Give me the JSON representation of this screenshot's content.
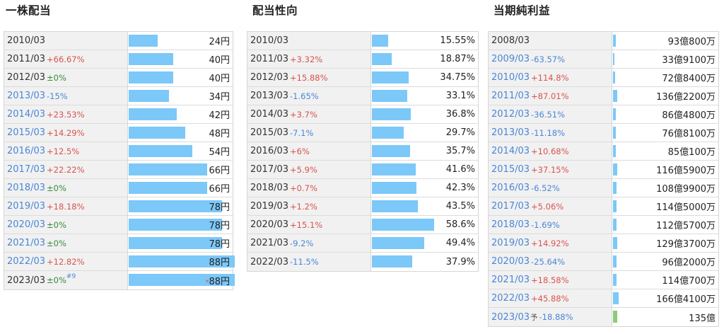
{
  "dividend_per_share": {
    "title": "一株配当",
    "rows": [
      {
        "year": "2010/03",
        "change": "",
        "change_type": "",
        "value": "24円",
        "fraction": 0.135
      },
      {
        "year": "2011/03",
        "change": "+66.67%",
        "change_type": "pos",
        "value": "40円",
        "fraction": 0.21
      },
      {
        "year": "2012/03",
        "change": "±0%",
        "change_type": "zero",
        "value": "40円",
        "fraction": 0.21
      },
      {
        "year": "2013/03",
        "change": "-15%",
        "change_type": "neg",
        "value": "34円",
        "fraction": 0.19
      },
      {
        "year": "2014/03",
        "change": "+23.53%",
        "change_type": "pos",
        "value": "42円",
        "fraction": 0.225
      },
      {
        "year": "2015/03",
        "change": "+14.29%",
        "change_type": "pos",
        "value": "48円",
        "fraction": 0.265
      },
      {
        "year": "2016/03",
        "change": "+12.5%",
        "change_type": "pos",
        "value": "54円",
        "fraction": 0.3
      },
      {
        "year": "2017/03",
        "change": "+22.22%",
        "change_type": "pos",
        "value": "66円",
        "fraction": 0.37
      },
      {
        "year": "2018/03",
        "change": "±0%",
        "change_type": "zero",
        "value": "66円",
        "fraction": 0.37
      },
      {
        "year": "2019/03",
        "change": "+18.18%",
        "change_type": "pos",
        "value": "78円",
        "fraction": 0.44
      },
      {
        "year": "2020/03",
        "change": "±0%",
        "change_type": "zero",
        "value": "78円",
        "fraction": 0.44
      },
      {
        "year": "2021/03",
        "change": "±0%",
        "change_type": "zero",
        "value": "78円",
        "fraction": 0.44
      },
      {
        "year": "2022/03",
        "change": "+12.82%",
        "change_type": "pos",
        "value": "88円",
        "fraction": 0.5
      },
      {
        "year": "2023/03",
        "change": "±0%",
        "change_type": "zero",
        "note": "#9",
        "star": "*",
        "value": "88円",
        "fraction": 0.5
      }
    ]
  },
  "payout_ratio": {
    "title": "配当性向",
    "rows": [
      {
        "year": "2010/03",
        "change": "",
        "change_type": "",
        "value": "15.55%",
        "fraction": 0.155
      },
      {
        "year": "2011/03",
        "change": "+3.32%",
        "change_type": "pos",
        "value": "18.87%",
        "fraction": 0.189
      },
      {
        "year": "2012/03",
        "change": "+15.88%",
        "change_type": "pos",
        "value": "34.75%",
        "fraction": 0.348
      },
      {
        "year": "2013/03",
        "change": "-1.65%",
        "change_type": "neg",
        "value": "33.1%",
        "fraction": 0.331
      },
      {
        "year": "2014/03",
        "change": "+3.7%",
        "change_type": "pos",
        "value": "36.8%",
        "fraction": 0.368
      },
      {
        "year": "2015/03",
        "change": "-7.1%",
        "change_type": "neg",
        "value": "29.7%",
        "fraction": 0.297
      },
      {
        "year": "2016/03",
        "change": "+6%",
        "change_type": "pos",
        "value": "35.7%",
        "fraction": 0.357
      },
      {
        "year": "2017/03",
        "change": "+5.9%",
        "change_type": "pos",
        "value": "41.6%",
        "fraction": 0.416
      },
      {
        "year": "2018/03",
        "change": "+0.7%",
        "change_type": "pos",
        "value": "42.3%",
        "fraction": 0.423
      },
      {
        "year": "2019/03",
        "change": "+1.2%",
        "change_type": "pos",
        "value": "43.5%",
        "fraction": 0.435
      },
      {
        "year": "2020/03",
        "change": "+15.1%",
        "change_type": "pos",
        "value": "58.6%",
        "fraction": 0.586
      },
      {
        "year": "2021/03",
        "change": "-9.2%",
        "change_type": "neg",
        "value": "49.4%",
        "fraction": 0.494
      },
      {
        "year": "2022/03",
        "change": "-11.5%",
        "change_type": "neg",
        "value": "37.9%",
        "fraction": 0.379
      }
    ]
  },
  "net_income": {
    "title": "当期純利益",
    "rows": [
      {
        "year": "2008/03",
        "change": "",
        "change_type": "",
        "value": "93億800万",
        "fraction": 0.029
      },
      {
        "year": "2009/03",
        "change": "-63.57%",
        "change_type": "neg",
        "value": "33億9100万",
        "fraction": 0.011
      },
      {
        "year": "2010/03",
        "change": "+114.8%",
        "change_type": "pos",
        "value": "72億8400万",
        "fraction": 0.023
      },
      {
        "year": "2011/03",
        "change": "+87.01%",
        "change_type": "pos",
        "value": "136億2200万",
        "fraction": 0.043
      },
      {
        "year": "2012/03",
        "change": "-36.51%",
        "change_type": "neg",
        "value": "86億4800万",
        "fraction": 0.027
      },
      {
        "year": "2013/03",
        "change": "-11.18%",
        "change_type": "neg",
        "value": "76億8100万",
        "fraction": 0.024
      },
      {
        "year": "2014/03",
        "change": "+10.68%",
        "change_type": "pos",
        "value": "85億100万",
        "fraction": 0.027
      },
      {
        "year": "2015/03",
        "change": "+37.15%",
        "change_type": "pos",
        "value": "116億5900万",
        "fraction": 0.037
      },
      {
        "year": "2016/03",
        "change": "-6.52%",
        "change_type": "neg",
        "value": "108億9900万",
        "fraction": 0.034
      },
      {
        "year": "2017/03",
        "change": "+5.06%",
        "change_type": "pos",
        "value": "114億5000万",
        "fraction": 0.036
      },
      {
        "year": "2018/03",
        "change": "-1.69%",
        "change_type": "neg",
        "value": "112億5700万",
        "fraction": 0.035
      },
      {
        "year": "2019/03",
        "change": "+14.92%",
        "change_type": "pos",
        "value": "129億3700万",
        "fraction": 0.041
      },
      {
        "year": "2020/03",
        "change": "-25.64%",
        "change_type": "neg",
        "value": "96億2000万",
        "fraction": 0.03
      },
      {
        "year": "2021/03",
        "change": "+18.58%",
        "change_type": "pos",
        "value": "114億700万",
        "fraction": 0.036
      },
      {
        "year": "2022/03",
        "change": "+45.88%",
        "change_type": "pos",
        "value": "166億4100万",
        "fraction": 0.052
      },
      {
        "year": "2023/03",
        "change": "-18.88%",
        "change_type": "neg",
        "forecast": "予",
        "value": "135億",
        "fraction": 0.042,
        "bar_color": "green"
      }
    ]
  }
}
